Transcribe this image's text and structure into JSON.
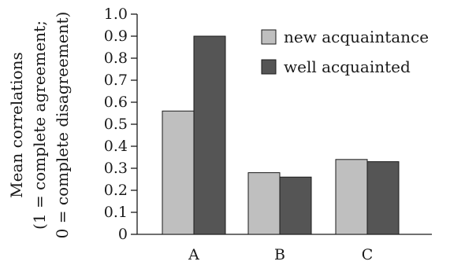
{
  "chart_data": {
    "type": "bar",
    "categories": [
      "A",
      "B",
      "C"
    ],
    "series": [
      {
        "name": "new acquaintance",
        "values": [
          0.56,
          0.28,
          0.34
        ],
        "color": "#bfbfbf"
      },
      {
        "name": "well acquainted",
        "values": [
          0.9,
          0.26,
          0.33
        ],
        "color": "#555555"
      }
    ],
    "ylim": [
      0,
      1.0
    ],
    "yticks": [
      "0",
      "0.1",
      "0.2",
      "0.3",
      "0.4",
      "0.5",
      "0.6",
      "0.7",
      "0.8",
      "0.9",
      "1.0"
    ],
    "ylabel_lines": [
      "Mean correlations",
      "(1 = complete agreement;",
      "0 = complete disagreement)"
    ],
    "xlabel": "",
    "title": "",
    "grid": false,
    "legend_position": "top-right"
  }
}
